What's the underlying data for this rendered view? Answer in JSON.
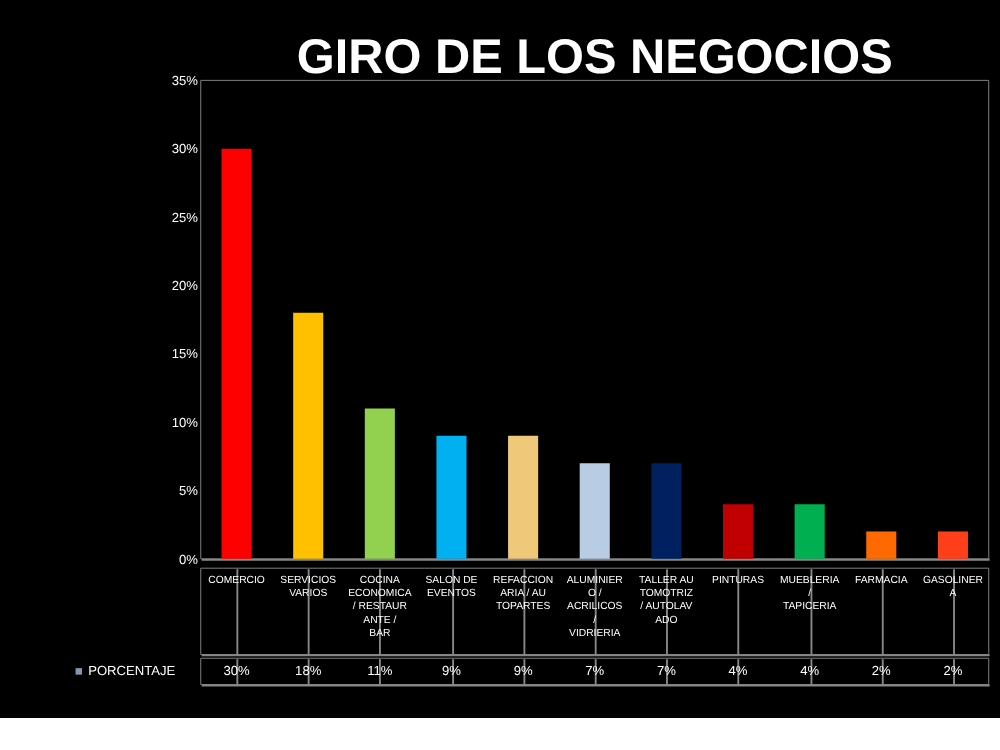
{
  "chart_data": {
    "type": "bar",
    "title": "GIRO DE LOS NEGOCIOS",
    "categories": [
      "COMERCIO",
      "SERVICIOS VARIOS",
      "COCINA ECONOMICA / RESTAURANTE / BAR",
      "SALON DE EVENTOS",
      "REFACCIONARIA / AUTOPARTES",
      "ALUMINIERO / ACRILICOS / VIDRIERIA",
      "TALLER AUTOMOTRIZ / AUTOLAVADO",
      "PINTURAS",
      "MUEBLERIA / TAPICERIA",
      "FARMACIA",
      "GASOLINERA"
    ],
    "series": [
      {
        "name": "PORCENTAJE",
        "color": "#8496b0",
        "values": [
          30,
          18,
          11,
          9,
          9,
          7,
          7,
          4,
          4,
          2,
          2
        ],
        "colors": [
          "#ff0000",
          "#ffc000",
          "#92d050",
          "#00b0f0",
          "#f0c87a",
          "#b8cce4",
          "#002060",
          "#c00000",
          "#00b050",
          "#ff6a00",
          "#ff3f1a"
        ],
        "value_labels": [
          "30%",
          "18%",
          "11%",
          "9%",
          "9%",
          "7%",
          "7%",
          "4%",
          "4%",
          "2%",
          "2%"
        ]
      }
    ],
    "ylim": [
      0,
      35
    ],
    "yticks": [
      {
        "value": 0,
        "label": "0%"
      },
      {
        "value": 5,
        "label": "5%"
      },
      {
        "value": 10,
        "label": "10%"
      },
      {
        "value": 15,
        "label": "15%"
      },
      {
        "value": 20,
        "label": "20%"
      },
      {
        "value": 25,
        "label": "25%"
      },
      {
        "value": 30,
        "label": "30%"
      },
      {
        "value": 35,
        "label": "35%"
      }
    ],
    "grid": false,
    "legend": "bottom left"
  }
}
